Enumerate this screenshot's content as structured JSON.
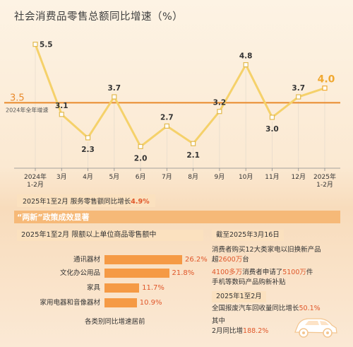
{
  "chart_data": {
    "type": "line",
    "title": "社会消费品零售总额同比增速（%）",
    "categories": [
      "2024年\n1-2月",
      "3月",
      "4月",
      "5月",
      "6月",
      "7月",
      "8月",
      "9月",
      "10月",
      "11月",
      "12月",
      "2025年\n1-2月"
    ],
    "values": [
      5.5,
      3.1,
      2.3,
      3.7,
      2.0,
      2.7,
      2.1,
      3.2,
      4.8,
      3.0,
      3.7,
      4.0
    ],
    "ylim": [
      1.5,
      6.0
    ],
    "reference_line": {
      "value": 3.5,
      "value_label": "3.5",
      "label": "2024年全年增速"
    },
    "colors": {
      "line": "#f5d16a",
      "reference": "#e98a2c",
      "highlight": "#f0a830"
    }
  },
  "services_note": {
    "text": "2025年1至2月 服务零售额同比增长",
    "value": "4.9%"
  },
  "banner": {
    "text": "“两新”政策成效显著"
  },
  "goods": {
    "header": "2025年1至2月 限额以上单位商品零售额中",
    "caption": "各类别同比增速居前",
    "items": [
      {
        "label": "通讯器材",
        "value": 26.2,
        "value_text": "26.2%"
      },
      {
        "label": "文化办公用品",
        "value": 21.8,
        "value_text": "21.8%"
      },
      {
        "label": "家具",
        "value": 11.7,
        "value_text": "11.7%"
      },
      {
        "label": "家用电器和音像器材",
        "value": 10.9,
        "value_text": "10.9%"
      }
    ]
  },
  "right": {
    "header1": "截至2025年3月16日",
    "line1": "消费者购买12大类家电以旧换新产品",
    "line2_pre": "超",
    "line2_hl": "2600万",
    "line2_post": "台",
    "line3_hl1": "4100多万",
    "line3_mid": "消费者申请了",
    "line3_hl2": "5100万",
    "line3_post": "件",
    "line4": "手机等数码产品购新补贴",
    "header2": "2025年1至2月",
    "line5_pre": "全国报废汽车回收量同比增长",
    "line5_hl": "50.1%",
    "line6": "其中",
    "line7_pre": "2月同比增",
    "line7_hl": "188.2%"
  }
}
